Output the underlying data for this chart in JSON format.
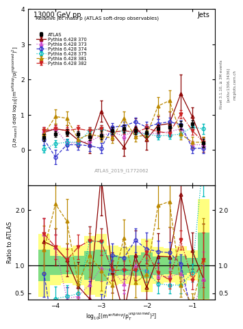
{
  "title_top": "13000 GeV pp",
  "title_right": "Jets",
  "plot_title": "Relative jet mass ρ (ATLAS soft-drop observables)",
  "ylabel_main": "(1/σ$_{resum}$) dσ/d log$_{10}$[(m$^{soft drop}$/p$_T^{ungroomed}$)$^2$]",
  "ylabel_ratio": "Ratio to ATLAS",
  "xlabel": "log$_{10}$[(m$^{soft drop}$/p$_T^{ungroomed}$)$^2$]",
  "rivet_label": "Rivet 3.1.10, ≥ 3M events",
  "arxiv_label": "[arXiv:1306.3436]",
  "mcplots_label": "mcplots.cern.ch",
  "atlas_label": "ATLAS_2019_I1772062",
  "xvals": [
    -4.25,
    -4.0,
    -3.75,
    -3.5,
    -3.25,
    -3.0,
    -2.75,
    -2.5,
    -2.25,
    -2.0,
    -1.75,
    -1.5,
    -1.25,
    -1.0,
    -0.75
  ],
  "atlas_y": [
    0.35,
    0.45,
    0.5,
    0.45,
    0.38,
    0.42,
    0.55,
    0.6,
    0.55,
    0.5,
    0.6,
    0.65,
    0.7,
    0.75,
    0.2
  ],
  "atlas_yerr": [
    0.1,
    0.08,
    0.08,
    0.08,
    0.1,
    0.12,
    0.1,
    0.1,
    0.1,
    0.12,
    0.1,
    0.1,
    0.12,
    0.1,
    0.12
  ],
  "p370_y": [
    0.5,
    0.6,
    0.55,
    0.28,
    0.15,
    1.1,
    0.48,
    0.08,
    0.65,
    0.3,
    0.7,
    0.75,
    1.6,
    0.95,
    0.15
  ],
  "p370_yerr": [
    0.15,
    0.15,
    0.15,
    0.2,
    0.25,
    0.3,
    0.2,
    0.25,
    0.25,
    0.3,
    0.25,
    0.35,
    0.55,
    0.25,
    0.2
  ],
  "p373_y": [
    0.55,
    0.6,
    0.2,
    0.2,
    0.25,
    0.4,
    0.5,
    0.4,
    0.55,
    0.45,
    0.48,
    0.52,
    0.6,
    0.15,
    0.15
  ],
  "p373_yerr": [
    0.1,
    0.1,
    0.1,
    0.1,
    0.1,
    0.1,
    0.1,
    0.1,
    0.1,
    0.1,
    0.1,
    0.1,
    0.1,
    0.1,
    0.1
  ],
  "p374_y": [
    0.3,
    -0.2,
    0.15,
    0.15,
    0.12,
    0.05,
    0.65,
    0.68,
    0.8,
    0.65,
    0.75,
    0.8,
    0.72,
    0.05,
    0.05
  ],
  "p374_yerr": [
    0.15,
    0.2,
    0.15,
    0.15,
    0.15,
    0.15,
    0.12,
    0.12,
    0.12,
    0.15,
    0.12,
    0.12,
    0.12,
    0.15,
    0.15
  ],
  "p375_y": [
    0.02,
    0.18,
    0.22,
    0.22,
    0.55,
    0.6,
    0.5,
    0.55,
    0.5,
    0.45,
    0.4,
    0.42,
    0.45,
    0.65,
    0.6
  ],
  "p375_yerr": [
    0.1,
    0.1,
    0.1,
    0.1,
    0.1,
    0.1,
    0.1,
    0.1,
    0.1,
    0.1,
    0.1,
    0.1,
    0.1,
    0.12,
    0.15
  ],
  "p381_y": [
    0.45,
    0.95,
    0.9,
    0.3,
    0.45,
    0.38,
    0.35,
    0.9,
    0.38,
    0.42,
    1.25,
    1.4,
    0.45,
    0.22,
    0.22
  ],
  "p381_yerr": [
    0.15,
    0.2,
    0.2,
    0.15,
    0.15,
    0.15,
    0.15,
    0.2,
    0.15,
    0.15,
    0.25,
    0.3,
    0.15,
    0.15,
    0.15
  ],
  "p382_y": [
    0.55,
    0.6,
    0.55,
    0.6,
    0.55,
    0.6,
    0.5,
    0.55,
    0.5,
    0.62,
    0.52,
    0.48,
    1.02,
    0.55,
    0.22
  ],
  "p382_yerr": [
    0.1,
    0.1,
    0.1,
    0.1,
    0.1,
    0.1,
    0.1,
    0.1,
    0.1,
    0.1,
    0.1,
    0.1,
    0.12,
    0.12,
    0.1
  ],
  "colors": {
    "atlas": "#000000",
    "p370": "#8B0000",
    "p373": "#CC44CC",
    "p374": "#3333CC",
    "p375": "#00BBBB",
    "p381": "#BB8800",
    "p382": "#CC2222"
  },
  "bg_green": "#80DD80",
  "bg_yellow": "#FFFF80",
  "xlim": [
    -4.6,
    -0.5
  ],
  "ylim_main": [
    -1.0,
    4.0
  ],
  "ylim_ratio": [
    0.38,
    2.45
  ],
  "yticks_main": [
    0,
    1,
    2,
    3,
    4
  ],
  "yticks_ratio": [
    0.5,
    1.0,
    2.0
  ],
  "xticks": [
    -4,
    -3,
    -2,
    -1
  ]
}
